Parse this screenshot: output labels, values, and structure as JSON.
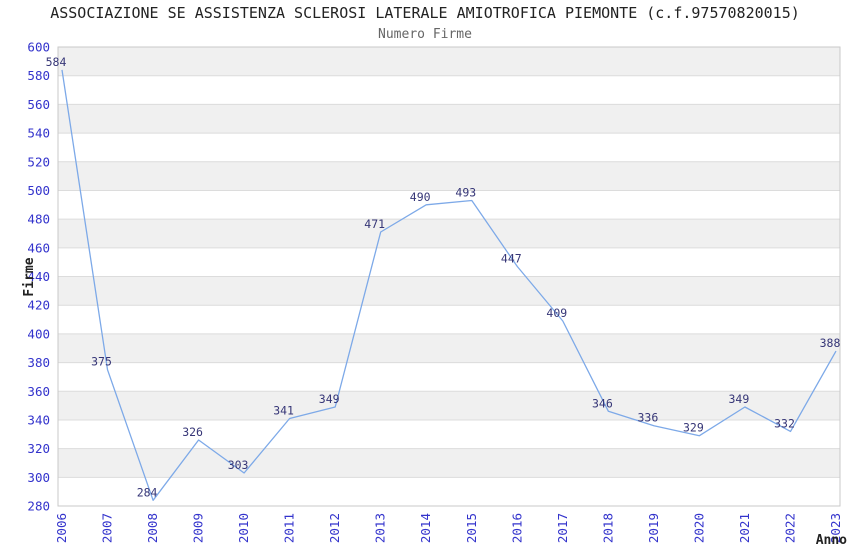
{
  "header": {
    "title": "ASSOCIAZIONE SE ASSISTENZA SCLEROSI LATERALE AMIOTROFICA PIEMONTE (c.f.97570820015)",
    "subtitle": "Numero Firme"
  },
  "chart_data": {
    "type": "line",
    "title": "ASSOCIAZIONE SE ASSISTENZA SCLEROSI LATERALE AMIOTROFICA PIEMONTE (c.f.97570820015)",
    "subtitle": "Numero Firme",
    "categories": [
      "2006",
      "2007",
      "2008",
      "2009",
      "2010",
      "2011",
      "2012",
      "2013",
      "2014",
      "2015",
      "2016",
      "2017",
      "2018",
      "2019",
      "2020",
      "2021",
      "2022",
      "2023"
    ],
    "values": [
      584,
      375,
      284,
      326,
      303,
      341,
      349,
      471,
      490,
      493,
      447,
      409,
      346,
      336,
      329,
      349,
      332,
      388
    ],
    "xlabel": "Anno",
    "ylabel": "Firme",
    "ylim": [
      280,
      600
    ],
    "ytick_step": 20,
    "yticks": [
      280,
      300,
      320,
      340,
      360,
      380,
      400,
      420,
      440,
      460,
      480,
      500,
      520,
      540,
      560,
      580,
      600
    ],
    "point_labels_visible": true,
    "markers": "none",
    "legend": "none",
    "grid": "alternating-horizontal-bands",
    "xtick_rotation_deg": -90
  },
  "colors": {
    "background": "#ffffff",
    "line": "#7da9e8",
    "tick_label": "#3333cc",
    "data_label": "#363677",
    "band_gray": "#f0f0f0",
    "gridline": "#dcdcdc",
    "plot_border": "#c9c9c9",
    "title": "#222222",
    "subtitle": "#666666",
    "axis_title": "#222222"
  }
}
